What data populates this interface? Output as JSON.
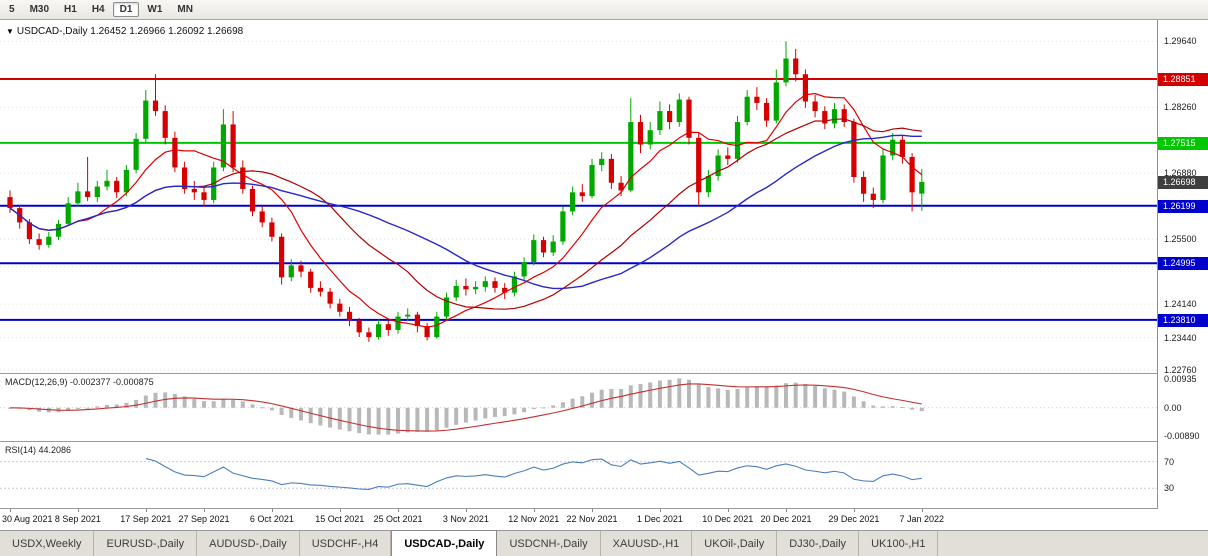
{
  "toolbar": {
    "timeframes": [
      "5",
      "M30",
      "H1",
      "H4",
      "D1",
      "W1",
      "MN"
    ],
    "active_index": 4
  },
  "chart": {
    "title_line": "USDCAD-,Daily 1.26452 1.26966 1.26092 1.26698",
    "symbol": "USDCAD-,Daily",
    "open": "1.26452",
    "high": "1.26966",
    "low": "1.26092",
    "close": "1.26698",
    "current_price": "1.26698",
    "price_axis": [
      "1.29640",
      "1.28260",
      "1.26880",
      "1.25500",
      "1.24920",
      "1.24140",
      "1.23440",
      "1.22760"
    ],
    "hlines": [
      {
        "label": "1.28851",
        "price": 1.28851,
        "color": "#d20000"
      },
      {
        "label": "1.27515",
        "price": 1.27515,
        "color": "#00c800"
      },
      {
        "label": "1.26199",
        "price": 1.26199,
        "color": "#0000cd"
      },
      {
        "label": "1.24995",
        "price": 1.24995,
        "color": "#0000cd"
      },
      {
        "label": "1.23810",
        "price": 1.2381,
        "color": "#0000cd"
      }
    ]
  },
  "macd": {
    "label": "MACD(12,26,9) -0.002377 -0.000875",
    "axis_max": "0.00935",
    "axis_zero": "0.00",
    "axis_min": "-0.00890"
  },
  "rsi": {
    "label": "RSI(14) 44.2086",
    "level_high": "70",
    "level_low": "30"
  },
  "time_axis": [
    {
      "label": "30 Aug 2021",
      "bar": 0
    },
    {
      "label": "8 Sep 2021",
      "bar": 7
    },
    {
      "label": "17 Sep 2021",
      "bar": 14
    },
    {
      "label": "27 Sep 2021",
      "bar": 20
    },
    {
      "label": "6 Oct 2021",
      "bar": 27
    },
    {
      "label": "15 Oct 2021",
      "bar": 34
    },
    {
      "label": "25 Oct 2021",
      "bar": 40
    },
    {
      "label": "3 Nov 2021",
      "bar": 47
    },
    {
      "label": "12 Nov 2021",
      "bar": 54
    },
    {
      "label": "22 Nov 2021",
      "bar": 60
    },
    {
      "label": "1 Dec 2021",
      "bar": 67
    },
    {
      "label": "10 Dec 2021",
      "bar": 74
    },
    {
      "label": "20 Dec 2021",
      "bar": 80
    },
    {
      "label": "29 Dec 2021",
      "bar": 87
    },
    {
      "label": "7 Jan 2022",
      "bar": 94
    }
  ],
  "tabs": {
    "active_index": 4,
    "items": [
      "USDX,Weekly",
      "EURUSD-,Daily",
      "AUDUSD-,Daily",
      "USDCHF-,H4",
      "USDCAD-,Daily",
      "USDCNH-,Daily",
      "XAUUSD-,H1",
      "UKOil-,Daily",
      "DJ30-,Daily",
      "UK100-,H1"
    ]
  },
  "colors": {
    "candle_up": "#00a800",
    "candle_down": "#d60000",
    "ma_fast": "#e00000",
    "ma_mid": "#b00000",
    "ma_slow": "#2828c8",
    "macd_hist": "#b8b8b8",
    "macd_signal": "#c03030",
    "rsi_line": "#4a7ebb",
    "badge_current_bg": "#3f3f3f",
    "level_red": "#d20000",
    "level_green": "#00c800",
    "level_blue": "#0000cd"
  },
  "chart_data": {
    "type": "candlestick",
    "symbol": "USDCAD-",
    "timeframe": "Daily",
    "title": "USDCAD-,Daily",
    "y_range": [
      1.2272,
      1.2996
    ],
    "last_bar": {
      "open": 1.26452,
      "high": 1.26966,
      "low": 1.26092,
      "close": 1.26698
    },
    "levels": [
      1.28851,
      1.27515,
      1.26199,
      1.24995,
      1.2381
    ],
    "moving_averages": [
      {
        "type": "sma",
        "period": 8,
        "color_key": "ma_fast"
      },
      {
        "type": "sma",
        "period": 20,
        "color_key": "ma_mid"
      },
      {
        "type": "sma",
        "period": 32,
        "color_key": "ma_slow"
      }
    ],
    "indicators": [
      {
        "name": "MACD",
        "params": [
          12,
          26,
          9
        ],
        "main_value": -0.002377,
        "signal_value": -0.000875,
        "scale": [
          -0.0089,
          0.00935
        ]
      },
      {
        "name": "RSI",
        "params": [
          14
        ],
        "value": 44.2086,
        "levels": [
          70,
          30
        ]
      }
    ],
    "candles": [
      [
        1.2638,
        1.2652,
        1.2605,
        1.2615
      ],
      [
        1.2615,
        1.2622,
        1.2572,
        1.2585
      ],
      [
        1.2585,
        1.2592,
        1.254,
        1.255
      ],
      [
        1.255,
        1.2562,
        1.2528,
        1.2538
      ],
      [
        1.2538,
        1.2565,
        1.2532,
        1.2555
      ],
      [
        1.2555,
        1.259,
        1.2548,
        1.2582
      ],
      [
        1.2582,
        1.2638,
        1.2578,
        1.2625
      ],
      [
        1.2625,
        1.2668,
        1.2618,
        1.265
      ],
      [
        1.265,
        1.2722,
        1.263,
        1.2638
      ],
      [
        1.2638,
        1.2672,
        1.2628,
        1.266
      ],
      [
        1.266,
        1.2695,
        1.2652,
        1.2672
      ],
      [
        1.2672,
        1.268,
        1.2636,
        1.2648
      ],
      [
        1.2648,
        1.2705,
        1.264,
        1.2695
      ],
      [
        1.2695,
        1.2772,
        1.2688,
        1.276
      ],
      [
        1.276,
        1.2862,
        1.2752,
        1.284
      ],
      [
        1.284,
        1.2895,
        1.2808,
        1.2818
      ],
      [
        1.2818,
        1.283,
        1.2748,
        1.2762
      ],
      [
        1.2762,
        1.2775,
        1.269,
        1.27
      ],
      [
        1.27,
        1.2712,
        1.2645,
        1.2655
      ],
      [
        1.2655,
        1.2672,
        1.2632,
        1.2648
      ],
      [
        1.2648,
        1.266,
        1.2618,
        1.2632
      ],
      [
        1.2632,
        1.2712,
        1.2625,
        1.27
      ],
      [
        1.27,
        1.2822,
        1.2692,
        1.279
      ],
      [
        1.279,
        1.2818,
        1.269,
        1.27
      ],
      [
        1.27,
        1.2715,
        1.2645,
        1.2655
      ],
      [
        1.2655,
        1.2662,
        1.2598,
        1.2608
      ],
      [
        1.2608,
        1.262,
        1.2575,
        1.2585
      ],
      [
        1.2585,
        1.2595,
        1.2545,
        1.2555
      ],
      [
        1.2555,
        1.2562,
        1.2455,
        1.247
      ],
      [
        1.247,
        1.2508,
        1.2462,
        1.2495
      ],
      [
        1.2495,
        1.2505,
        1.247,
        1.2482
      ],
      [
        1.2482,
        1.2488,
        1.2438,
        1.2448
      ],
      [
        1.2448,
        1.2462,
        1.243,
        1.244
      ],
      [
        1.244,
        1.2448,
        1.2405,
        1.2415
      ],
      [
        1.2415,
        1.2425,
        1.2388,
        1.2398
      ],
      [
        1.2398,
        1.2408,
        1.2368,
        1.238
      ],
      [
        1.238,
        1.2385,
        1.2345,
        1.2355
      ],
      [
        1.2355,
        1.2365,
        1.2335,
        1.2345
      ],
      [
        1.2345,
        1.2382,
        1.234,
        1.2372
      ],
      [
        1.2372,
        1.238,
        1.2348,
        1.236
      ],
      [
        1.236,
        1.2398,
        1.2352,
        1.2388
      ],
      [
        1.2388,
        1.2405,
        1.2378,
        1.2392
      ],
      [
        1.2392,
        1.2398,
        1.2355,
        1.2368
      ],
      [
        1.2368,
        1.2375,
        1.2338,
        1.2345
      ],
      [
        1.2345,
        1.2398,
        1.2342,
        1.2388
      ],
      [
        1.2388,
        1.2438,
        1.2382,
        1.2428
      ],
      [
        1.2428,
        1.2465,
        1.242,
        1.2452
      ],
      [
        1.2452,
        1.2468,
        1.2432,
        1.2445
      ],
      [
        1.2445,
        1.2462,
        1.2435,
        1.245
      ],
      [
        1.245,
        1.2472,
        1.244,
        1.2462
      ],
      [
        1.2462,
        1.247,
        1.2438,
        1.2448
      ],
      [
        1.2448,
        1.2458,
        1.2425,
        1.2438
      ],
      [
        1.2438,
        1.2482,
        1.243,
        1.2472
      ],
      [
        1.2472,
        1.2512,
        1.2462,
        1.2502
      ],
      [
        1.2502,
        1.256,
        1.2495,
        1.2548
      ],
      [
        1.2548,
        1.2555,
        1.2512,
        1.2522
      ],
      [
        1.2522,
        1.2558,
        1.2515,
        1.2545
      ],
      [
        1.2545,
        1.2618,
        1.2538,
        1.2608
      ],
      [
        1.2608,
        1.266,
        1.26,
        1.2648
      ],
      [
        1.2648,
        1.2665,
        1.2628,
        1.264
      ],
      [
        1.264,
        1.2718,
        1.2635,
        1.2705
      ],
      [
        1.2705,
        1.2732,
        1.2692,
        1.2718
      ],
      [
        1.2718,
        1.2728,
        1.2655,
        1.2668
      ],
      [
        1.2668,
        1.2682,
        1.264,
        1.2652
      ],
      [
        1.2652,
        1.2845,
        1.2648,
        1.2795
      ],
      [
        1.2795,
        1.281,
        1.273,
        1.2748
      ],
      [
        1.2748,
        1.2795,
        1.2738,
        1.2778
      ],
      [
        1.2778,
        1.2838,
        1.2768,
        1.2818
      ],
      [
        1.2818,
        1.2832,
        1.278,
        1.2795
      ],
      [
        1.2795,
        1.2855,
        1.2785,
        1.2842
      ],
      [
        1.2842,
        1.2848,
        1.2748,
        1.2762
      ],
      [
        1.2762,
        1.2772,
        1.262,
        1.2648
      ],
      [
        1.2648,
        1.2695,
        1.2638,
        1.2682
      ],
      [
        1.2682,
        1.2738,
        1.2672,
        1.2725
      ],
      [
        1.2725,
        1.2742,
        1.2705,
        1.2718
      ],
      [
        1.2718,
        1.2808,
        1.271,
        1.2795
      ],
      [
        1.2795,
        1.2862,
        1.2788,
        1.2848
      ],
      [
        1.2848,
        1.2868,
        1.282,
        1.2835
      ],
      [
        1.2835,
        1.2845,
        1.2785,
        1.2798
      ],
      [
        1.2798,
        1.2905,
        1.2792,
        1.2878
      ],
      [
        1.2878,
        1.2964,
        1.287,
        1.2928
      ],
      [
        1.2928,
        1.2948,
        1.288,
        1.2895
      ],
      [
        1.2895,
        1.2905,
        1.2825,
        1.2838
      ],
      [
        1.2838,
        1.2852,
        1.2805,
        1.2818
      ],
      [
        1.2818,
        1.2828,
        1.278,
        1.2792
      ],
      [
        1.2792,
        1.2835,
        1.2782,
        1.2822
      ],
      [
        1.2822,
        1.2832,
        1.2785,
        1.2795
      ],
      [
        1.2795,
        1.2802,
        1.2668,
        1.268
      ],
      [
        1.268,
        1.2692,
        1.2628,
        1.2645
      ],
      [
        1.2645,
        1.2658,
        1.2615,
        1.2632
      ],
      [
        1.2632,
        1.2738,
        1.2625,
        1.2725
      ],
      [
        1.2725,
        1.2772,
        1.2715,
        1.2758
      ],
      [
        1.2758,
        1.2768,
        1.2708,
        1.2722
      ],
      [
        1.2722,
        1.273,
        1.2608,
        1.2648
      ],
      [
        1.26452,
        1.26966,
        1.26092,
        1.26698
      ]
    ]
  }
}
